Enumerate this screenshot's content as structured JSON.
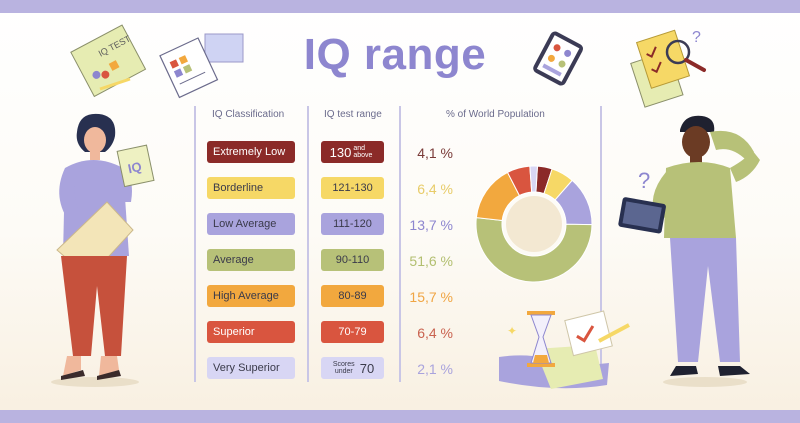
{
  "title": "IQ range",
  "headers": {
    "classification": "IQ Classification",
    "range": "IQ test range",
    "population": "% of World Population"
  },
  "rows": [
    {
      "classification": "Extremely Low",
      "range_main": "130",
      "range_note": "and above",
      "percent": "4,1 %",
      "color": "#8b2a28",
      "text_color": "#ffffff",
      "pct_color": "#7a3a38"
    },
    {
      "classification": "Borderline",
      "range_main": "121-130",
      "range_note": "",
      "percent": "6,4 %",
      "color": "#f6d866",
      "text_color": "#3a3a4a",
      "pct_color": "#e8cc69"
    },
    {
      "classification": "Low Average",
      "range_main": "111-120",
      "range_note": "",
      "percent": "13,7 %",
      "color": "#a9a3dd",
      "text_color": "#3a3a4a",
      "pct_color": "#8d86cf"
    },
    {
      "classification": "Average",
      "range_main": "90-110",
      "range_note": "",
      "percent": "51,6 %",
      "color": "#b7c178",
      "text_color": "#3a3a4a",
      "pct_color": "#b2bf70"
    },
    {
      "classification": "High Average",
      "range_main": "80-89",
      "range_note": "",
      "percent": "15,7 %",
      "color": "#f2a83e",
      "text_color": "#3a3a4a",
      "pct_color": "#f0a544"
    },
    {
      "classification": "Superior",
      "range_main": "70-79",
      "range_note": "",
      "percent": "6,4 %",
      "color": "#d9553f",
      "text_color": "#ffffff",
      "pct_color": "#c9624f"
    },
    {
      "classification": "Very Superior",
      "range_main": "70",
      "range_note": "Scores under",
      "percent": "2,1 %",
      "color": "#d8d6f4",
      "text_color": "#3a3a4a",
      "pct_color": "#a9a3dd"
    }
  ],
  "chart_data": {
    "type": "pie",
    "values": [
      4.1,
      6.4,
      13.7,
      51.6,
      15.7,
      6.4,
      2.1
    ],
    "colors": [
      "#8b2a28",
      "#f6d866",
      "#a9a3dd",
      "#b7c178",
      "#f2a83e",
      "#d9553f",
      "#d8d6f4"
    ],
    "style": "donut"
  },
  "clipart_text": {
    "test_paper": "IQ TEST",
    "held_sheet": "IQ"
  }
}
